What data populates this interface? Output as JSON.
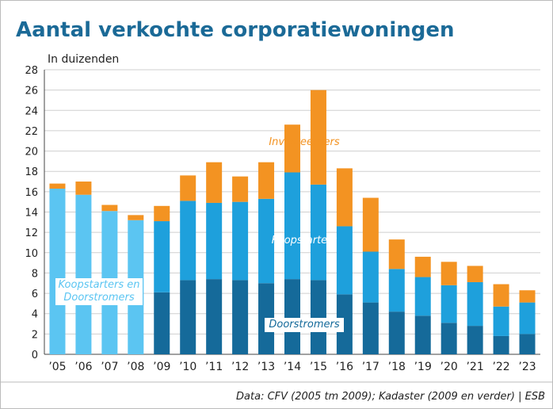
{
  "chart_data": {
    "type": "stacked_bar",
    "title": "Aantal verkochte corporatiewoningen",
    "y_label": "In duizenden",
    "source": "Data: CFV (2005 tm 2009); Kadaster (2009 en verder) | ESB",
    "categories": [
      "’05",
      "’06",
      "’07",
      "’08",
      "’09",
      "’10",
      "’11",
      "’12",
      "’13",
      "’14",
      "’15",
      "’16",
      "’17",
      "’18",
      "’19",
      "’20",
      "’21",
      "’22",
      "’23"
    ],
    "series": [
      {
        "name": "Koopstarters en Doorstromers",
        "color": "#5bc5f2",
        "values": [
          16.3,
          15.7,
          14.1,
          13.2,
          null,
          null,
          null,
          null,
          null,
          null,
          null,
          null,
          null,
          null,
          null,
          null,
          null,
          null,
          null
        ]
      },
      {
        "name": "Doorstromers",
        "color": "#156a9a",
        "values": [
          null,
          null,
          null,
          null,
          6.1,
          7.3,
          7.4,
          7.3,
          7.0,
          7.4,
          7.3,
          5.9,
          5.1,
          4.2,
          3.8,
          3.1,
          2.8,
          1.8,
          2.0
        ]
      },
      {
        "name": "Koopstarters",
        "color": "#1ea0dc",
        "values": [
          null,
          null,
          null,
          null,
          7.0,
          7.8,
          7.5,
          7.7,
          8.3,
          10.5,
          9.4,
          6.7,
          5.0,
          4.2,
          3.8,
          3.7,
          4.3,
          2.9,
          3.1
        ]
      },
      {
        "name": "Investeerders",
        "color": "#f39322",
        "values": [
          0.5,
          1.3,
          0.6,
          0.5,
          1.5,
          2.5,
          4.0,
          2.5,
          3.6,
          4.7,
          9.3,
          5.7,
          5.3,
          2.9,
          2.0,
          2.3,
          1.6,
          2.2,
          1.2
        ]
      }
    ],
    "ylim": [
      0,
      28
    ],
    "yticks": [
      0,
      2,
      4,
      6,
      8,
      10,
      12,
      14,
      16,
      18,
      20,
      22,
      24,
      26,
      28
    ],
    "grid": true
  }
}
